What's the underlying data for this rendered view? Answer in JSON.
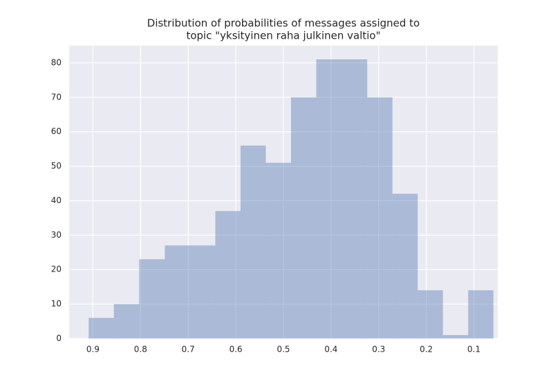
{
  "chart_data": {
    "type": "histogram",
    "title": [
      "Distribution of probabilities of messages assigned to",
      "topic \"yksityinen raha julkinen valtio\""
    ],
    "bins": [
      0.909,
      0.856,
      0.803,
      0.749,
      0.696,
      0.643,
      0.59,
      0.537,
      0.484,
      0.431,
      0.378,
      0.324,
      0.271,
      0.218,
      0.165,
      0.112,
      0.059
    ],
    "counts": [
      6,
      10,
      23,
      27,
      27,
      37,
      56,
      51,
      70,
      81,
      81,
      70,
      42,
      14,
      1,
      14
    ],
    "color": "#4c72b0",
    "xlim": [
      0.95,
      0.05
    ],
    "xticks": [
      0.9,
      0.8,
      0.7,
      0.6,
      0.5,
      0.4,
      0.3,
      0.2,
      0.1
    ],
    "ylim": [
      0,
      85
    ],
    "yticks": [
      0,
      10,
      20,
      30,
      40,
      50,
      60,
      70,
      80
    ],
    "grid": true
  }
}
